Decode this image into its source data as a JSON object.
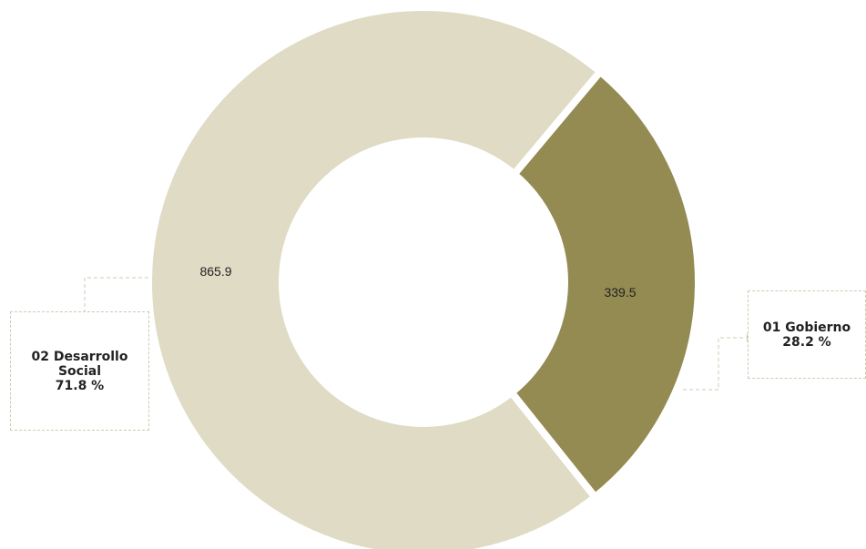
{
  "chart_data": {
    "type": "pie",
    "variant": "donut",
    "title": "",
    "slices": [
      {
        "label": "01 Gobierno",
        "value": 339.5,
        "value_label": "339.5",
        "percent_label": "28.2 %",
        "color": "#948b53"
      },
      {
        "label": "02 Desarrollo Social",
        "value": 865.9,
        "value_label": "865.9",
        "percent_label": "71.8 %",
        "color": "#dfdbc4"
      }
    ],
    "legend": "callout boxes"
  },
  "callouts": {
    "social": {
      "name_line1": "02 Desarrollo",
      "name_line2": "Social",
      "percent": "71.8 %"
    },
    "gobierno": {
      "name": "01 Gobierno",
      "percent": "28.2 %"
    }
  },
  "colors": {
    "leader_line": "#cfcbb2",
    "separator": "#ffffff"
  }
}
